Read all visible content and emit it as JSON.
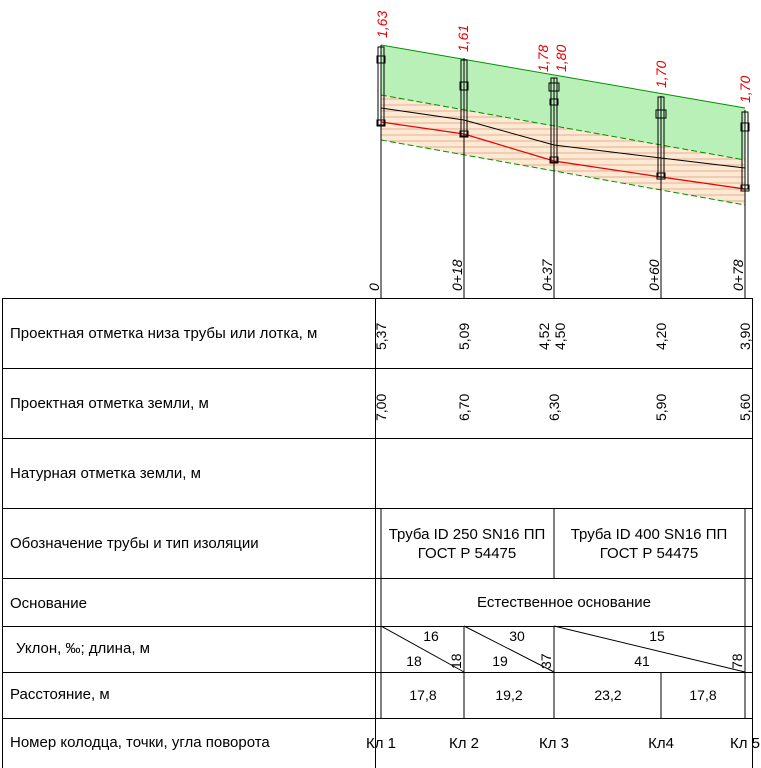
{
  "wells": [
    {
      "name": "Кл 1",
      "chainage": "0",
      "pipe_bottom": "5,37",
      "ground_design": "7,00",
      "depth": "1,63"
    },
    {
      "name": "Кл 2",
      "chainage": "0+18",
      "pipe_bottom": "5,09",
      "ground_design": "6,70",
      "depth": "1,61"
    },
    {
      "name": "Кл 3",
      "chainage": "0+37",
      "pipe_bottom": "4,52",
      "pipe_bottom_2": "4,50",
      "ground_design": "6,30",
      "depth": "1,78",
      "depth_2": "1,80"
    },
    {
      "name": "Кл4",
      "chainage": "0+60",
      "pipe_bottom": "4,20",
      "ground_design": "5,90",
      "depth": "1,70"
    },
    {
      "name": "Кл 5",
      "chainage": "0+78",
      "pipe_bottom": "3,90",
      "ground_design": "5,60",
      "depth": "1,70"
    }
  ],
  "rows": {
    "pipe_bottom": "Проектная отметка низа трубы или лотка, м",
    "ground_design": "Проектная отметка земли, м",
    "ground_natural": "Натурная отметка земли, м",
    "pipe_type": "Обозначение трубы и тип изоляции",
    "base": "Основание",
    "slope": "Уклон, ‰; длина, м",
    "distance": "Расстояние, м",
    "well_number": "Номер колодца, точки, угла поворота"
  },
  "pipes": [
    {
      "line1": "Труба ID 250 SN16 ПП",
      "line2": "ГОСТ Р 54475"
    },
    {
      "line1": "Труба ID 400 SN16 ПП",
      "line2": "ГОСТ Р 54475"
    }
  ],
  "base_text": "Естественное основание",
  "slopes": [
    {
      "slope": "16",
      "length": "18",
      "end_chainage": "18"
    },
    {
      "slope": "30",
      "length": "19",
      "end_chainage": "37"
    },
    {
      "slope": "15",
      "length": "41",
      "end_chainage": "78"
    }
  ],
  "distances": [
    "17,8",
    "19,2",
    "23,2",
    "17,8"
  ],
  "colors": {
    "design_ground_fill": "#b8f0b8",
    "design_ground_line": "#009000",
    "trench_fill": "#fde9d4",
    "hatch": "#d08a60",
    "pipe_bottom_line": "#e60000",
    "label_red": "#e60000"
  }
}
